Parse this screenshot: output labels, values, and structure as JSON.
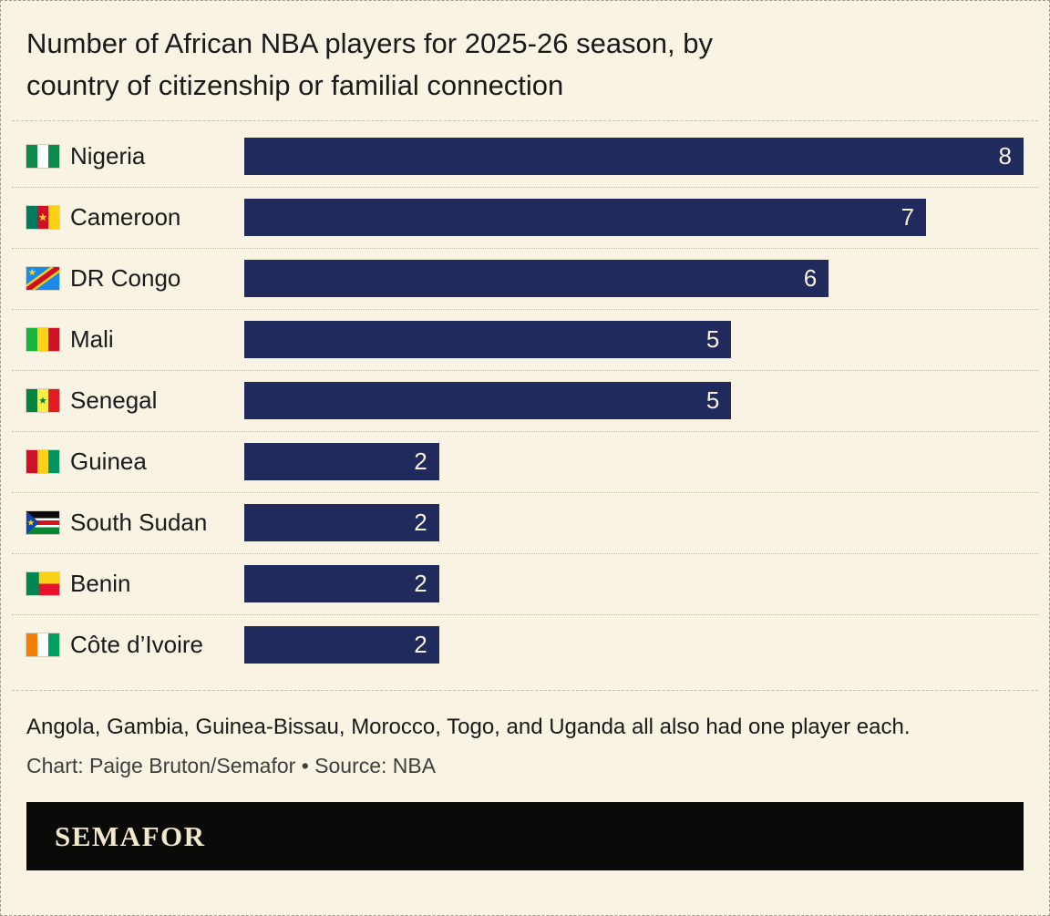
{
  "title_lines": [
    "Number of African NBA players for 2025-26 season, by",
    "country of citizenship or familial connection"
  ],
  "chart_data": {
    "type": "bar",
    "orientation": "horizontal",
    "title": "Number of African NBA players for 2025-26 season, by country of citizenship or familial connection",
    "categories": [
      "Nigeria",
      "Cameroon",
      "DR Congo",
      "Mali",
      "Senegal",
      "Guinea",
      "South Sudan",
      "Benin",
      "Côte d’Ivoire"
    ],
    "values": [
      8,
      7,
      6,
      5,
      5,
      2,
      2,
      2,
      2
    ],
    "xlim": [
      0,
      8
    ],
    "xmax": 8,
    "value_labels_shown": true,
    "grid": false,
    "legend": false,
    "flag_icons": [
      "nigeria-flag-icon",
      "cameroon-flag-icon",
      "dr-congo-flag-icon",
      "mali-flag-icon",
      "senegal-flag-icon",
      "guinea-flag-icon",
      "south-sudan-flag-icon",
      "benin-flag-icon",
      "cote-divoire-flag-icon"
    ]
  },
  "footnote": "Angola, Gambia, Guinea-Bissau, Morocco, Togo, and Uganda all also had one player each.",
  "credit": "Chart: Paige Bruton/Semafor • Source: NBA",
  "logo_text": "SEMAFOR",
  "colors": {
    "background": "#f8f3e2",
    "bar": "#202a5c",
    "bar_value_text": "#f7f1db",
    "text": "#1a1a1a",
    "credit_text": "#3e3e3e",
    "logo_bar_bg": "#0a0a09",
    "logo_text": "#f2e9cd"
  }
}
